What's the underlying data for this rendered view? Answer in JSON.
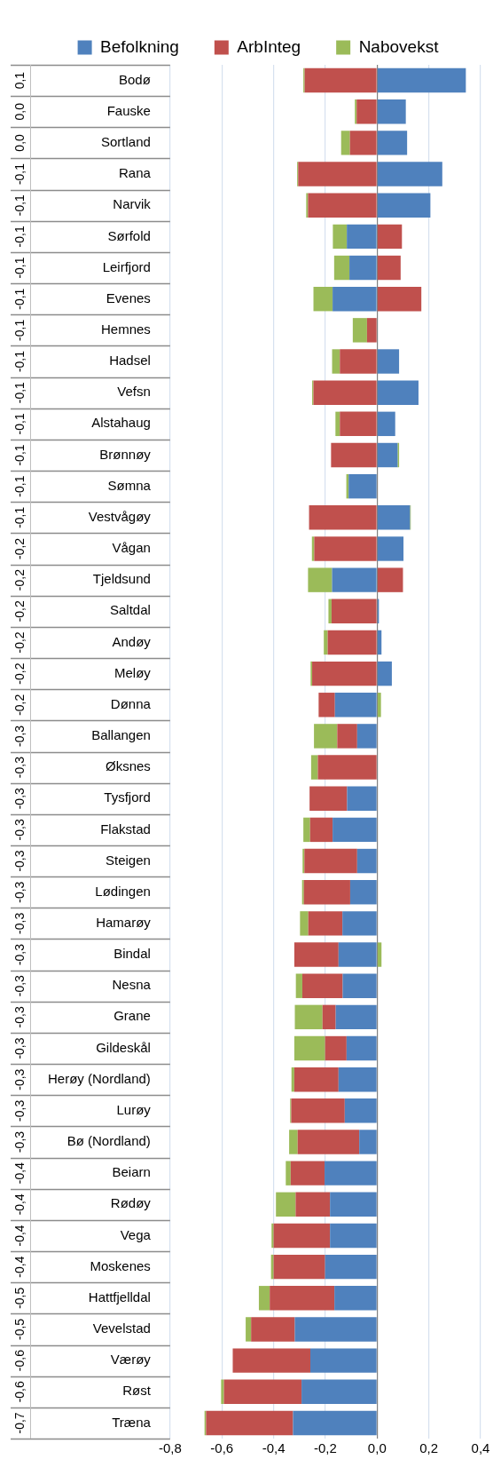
{
  "chart_data": {
    "type": "bar",
    "orientation": "horizontal",
    "stacked": true,
    "grid": "x",
    "legend": "top",
    "categories": [
      "Bodø",
      "Fauske",
      "Sortland",
      "Rana",
      "Narvik",
      "Sørfold",
      "Leirfjord",
      "Evenes",
      "Hemnes",
      "Hadsel",
      "Vefsn",
      "Alstahaug",
      "Brønnøy",
      "Sømna",
      "Vestvågøy",
      "Vågan",
      "Tjeldsund",
      "Saltdal",
      "Andøy",
      "Meløy",
      "Dønna",
      "Ballangen",
      "Øksnes",
      "Tysfjord",
      "Flakstad",
      "Steigen",
      "Lødingen",
      "Hamarøy",
      "Bindal",
      "Nesna",
      "Grane",
      "Gildeskål",
      "Herøy (Nordland)",
      "Lurøy",
      "Bø (Nordland)",
      "Beiarn",
      "Rødøy",
      "Vega",
      "Moskenes",
      "Hattfjelldal",
      "Vevelstad",
      "Værøy",
      "Røst",
      "Træna"
    ],
    "series": [
      {
        "name": "Befolkning",
        "color": "#4f81bd",
        "values": [
          0.343,
          0.111,
          0.116,
          0.252,
          0.206,
          -0.117,
          -0.107,
          -0.172,
          0,
          0.085,
          0.16,
          0.07,
          0.079,
          -0.11,
          0.127,
          0.102,
          -0.174,
          0.007,
          0.017,
          0.057,
          -0.163,
          -0.077,
          0,
          -0.116,
          -0.172,
          -0.077,
          -0.104,
          -0.134,
          -0.149,
          -0.133,
          -0.16,
          -0.118,
          -0.149,
          -0.125,
          -0.069,
          -0.203,
          -0.182,
          -0.182,
          -0.201,
          -0.165,
          -0.318,
          -0.258,
          -0.292,
          -0.325
        ]
      },
      {
        "name": "ArbInteg",
        "color": "#c0504d",
        "values": [
          -0.28,
          -0.079,
          -0.105,
          -0.305,
          -0.267,
          0.096,
          0.091,
          0.171,
          -0.039,
          -0.144,
          -0.246,
          -0.144,
          -0.178,
          0,
          -0.263,
          -0.243,
          0.1,
          -0.176,
          -0.191,
          -0.251,
          -0.063,
          -0.077,
          -0.229,
          -0.145,
          -0.087,
          -0.204,
          -0.179,
          -0.132,
          -0.171,
          -0.156,
          -0.051,
          -0.083,
          -0.171,
          -0.207,
          -0.238,
          -0.131,
          -0.133,
          -0.218,
          -0.199,
          -0.25,
          -0.169,
          -0.3,
          -0.3,
          -0.336
        ]
      },
      {
        "name": "Nabovekst",
        "color": "#9bbb59",
        "values": [
          -0.005,
          -0.007,
          -0.034,
          -0.004,
          -0.007,
          -0.054,
          -0.059,
          -0.074,
          -0.055,
          -0.03,
          -0.005,
          -0.017,
          0.006,
          -0.009,
          0.003,
          -0.009,
          -0.093,
          -0.012,
          -0.015,
          -0.006,
          0.015,
          -0.09,
          -0.026,
          0,
          -0.026,
          -0.007,
          -0.007,
          -0.032,
          0.017,
          -0.025,
          -0.107,
          -0.119,
          -0.011,
          -0.004,
          -0.033,
          -0.019,
          -0.076,
          -0.008,
          -0.01,
          -0.042,
          -0.021,
          0,
          -0.011,
          -0.006
        ]
      }
    ],
    "annotations": [
      "0,1",
      "0,0",
      "0,0",
      "-0,1",
      "-0,1",
      "-0,1",
      "-0,1",
      "-0,1",
      "-0,1",
      "-0,1",
      "-0,1",
      "-0,1",
      "-0,1",
      "-0,1",
      "-0,1",
      "-0,2",
      "-0,2",
      "-0,2",
      "-0,2",
      "-0,2",
      "-0,2",
      "-0,3",
      "-0,3",
      "-0,3",
      "-0,3",
      "-0,3",
      "-0,3",
      "-0,3",
      "-0,3",
      "-0,3",
      "-0,3",
      "-0,3",
      "-0,3",
      "-0,3",
      "-0,3",
      "-0,4",
      "-0,4",
      "-0,4",
      "-0,4",
      "-0,5",
      "-0,5",
      "-0,6",
      "-0,6",
      "-0,7"
    ],
    "xlim": [
      -0.8,
      0.4
    ],
    "xticks": [
      {
        "value": -0.8,
        "label": "-0,8"
      },
      {
        "value": -0.6,
        "label": "-0,6"
      },
      {
        "value": -0.4,
        "label": "-0,4"
      },
      {
        "value": -0.2,
        "label": "-0,2"
      },
      {
        "value": 0,
        "label": "0,0"
      },
      {
        "value": 0.2,
        "label": "0,2"
      },
      {
        "value": 0.4,
        "label": "0,4"
      }
    ]
  }
}
